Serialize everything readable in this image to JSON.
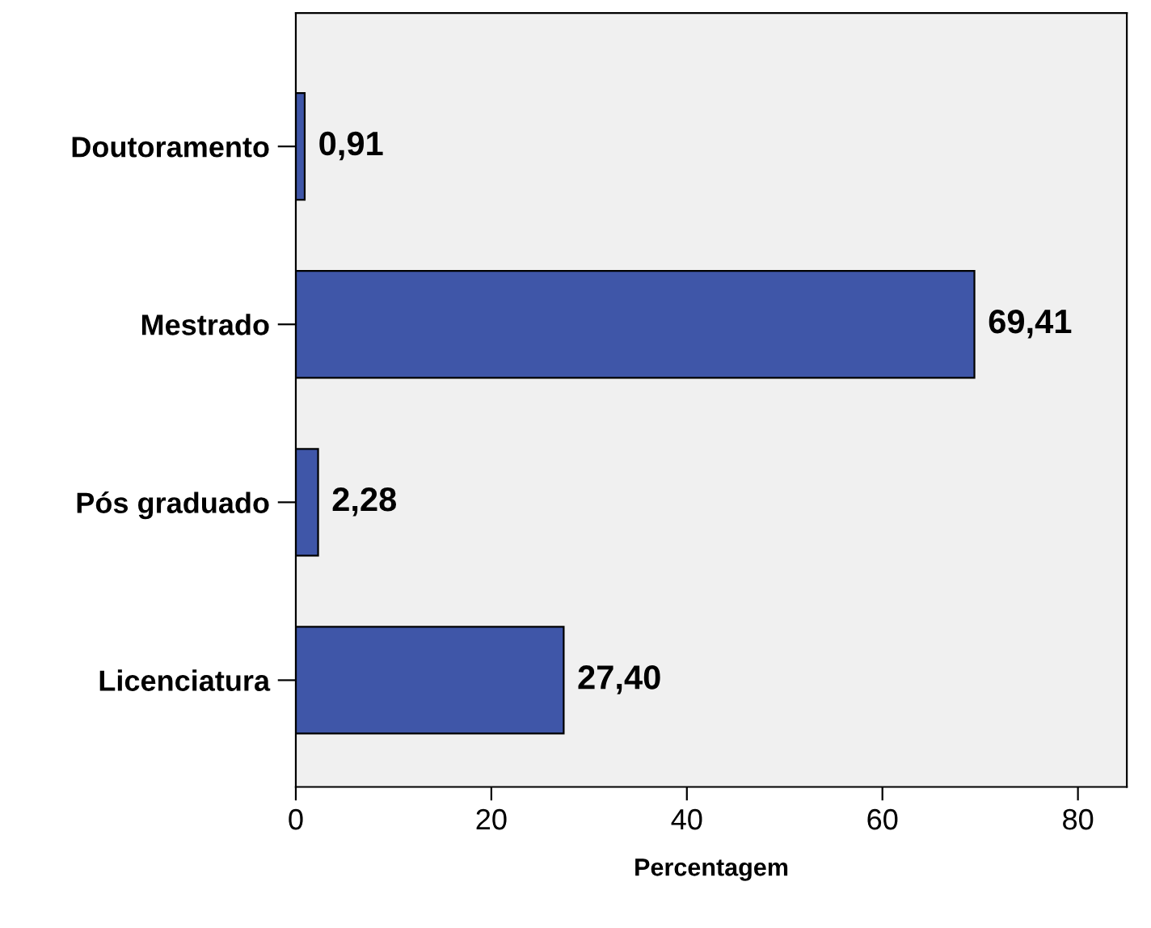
{
  "chart_data": {
    "type": "bar",
    "orientation": "horizontal",
    "xlabel": "Percentagem",
    "categories": [
      "Doutoramento",
      "Mestrado",
      "Pós graduado",
      "Licenciatura"
    ],
    "values": [
      0.91,
      69.41,
      2.28,
      27.4
    ],
    "value_labels": [
      "0,91",
      "69,41",
      "2,28",
      "27,40"
    ],
    "color": "#3f56a8",
    "xlim": [
      0,
      85
    ],
    "xticks": [
      0,
      20,
      40,
      60,
      80
    ],
    "grid": false
  }
}
